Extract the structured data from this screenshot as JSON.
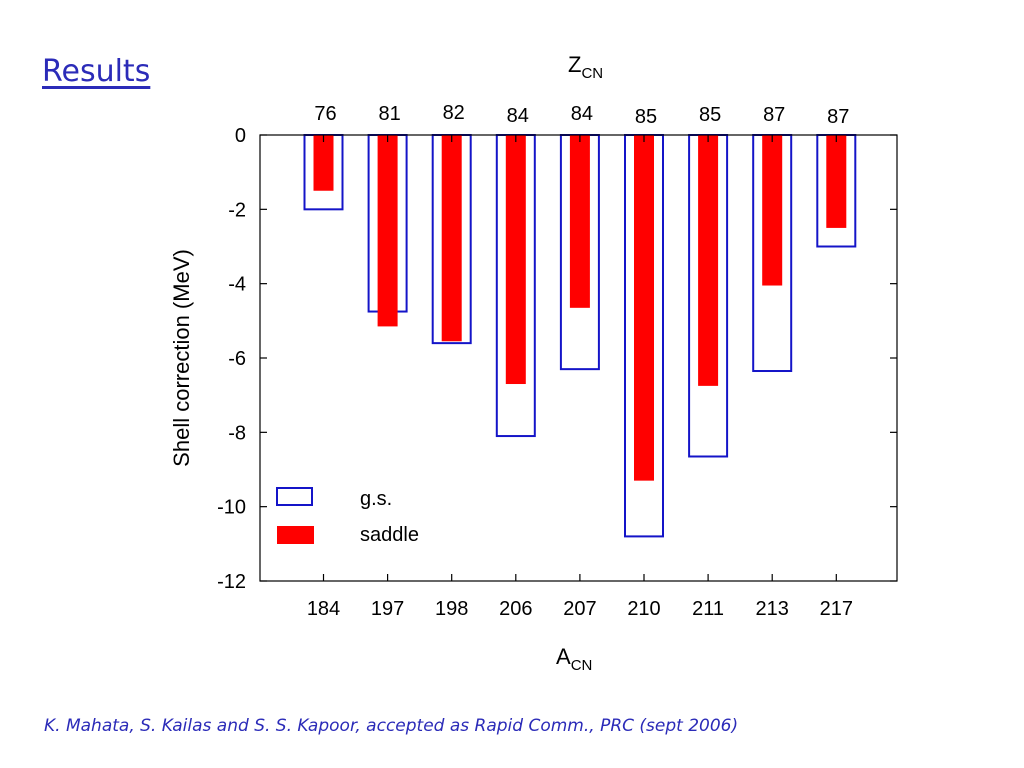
{
  "slide": {
    "title": "Results",
    "citation": "K. Mahata, S. Kailas and S. S. Kapoor, accepted as Rapid Comm., PRC (sept 2006)"
  },
  "chart_data": {
    "type": "bar",
    "categories": [
      "184",
      "197",
      "198",
      "206",
      "207",
      "210",
      "211",
      "213",
      "217"
    ],
    "top_categories": [
      "76",
      "81",
      "82",
      "84",
      "84",
      "85",
      "85",
      "87",
      "87"
    ],
    "series": [
      {
        "name": "g.s.",
        "style": "outline",
        "color": "#1414c8",
        "values": [
          -2.0,
          -4.75,
          -5.6,
          -8.1,
          -6.3,
          -10.8,
          -8.65,
          -6.35,
          -3.0
        ]
      },
      {
        "name": "saddle",
        "style": "filled",
        "color": "#ff0000",
        "values": [
          -1.5,
          -5.15,
          -5.55,
          -6.7,
          -4.65,
          -9.3,
          -6.75,
          -4.05,
          -2.5
        ]
      }
    ],
    "xlabel": {
      "main": "A",
      "sub": "CN"
    },
    "x2label": {
      "main": "Z",
      "sub": "CN"
    },
    "ylabel": "Shell correction (MeV)",
    "ylim": [
      -12,
      0
    ],
    "yticks": [
      0,
      -2,
      -4,
      -6,
      -8,
      -10,
      -12
    ],
    "grid": false,
    "legend": "bottom-left"
  }
}
